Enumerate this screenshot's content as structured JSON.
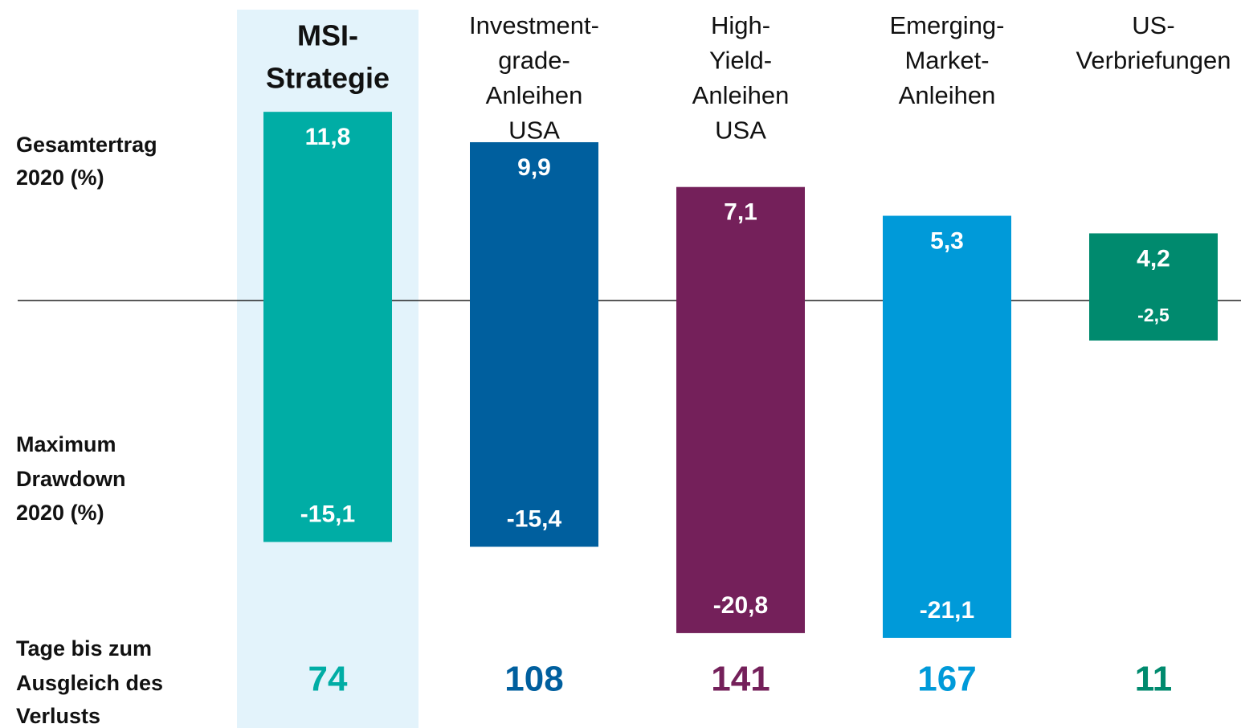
{
  "chart_data": {
    "type": "bar",
    "categories": [
      [
        "MSI-",
        "Strategie"
      ],
      [
        "Investment-",
        "grade-",
        "Anleihen",
        "USA"
      ],
      [
        "High-",
        "Yield-",
        "Anleihen",
        "USA"
      ],
      [
        "Emerging-",
        "Market-",
        "Anleihen"
      ],
      [
        "US-",
        "Verbriefungen"
      ]
    ],
    "colors": [
      "#00ada5",
      "#005f9e",
      "#74205a",
      "#009ad9",
      "#008a6e"
    ],
    "rows": [
      [
        "Gesamtertrag",
        "2020 (%)"
      ],
      [
        "Maximum",
        "Drawdown",
        "2020 (%)"
      ],
      [
        "Tage bis zum",
        "Ausgleich des",
        "Verlusts"
      ]
    ],
    "series": [
      {
        "values": [
          11.8,
          9.9,
          7.1,
          5.3,
          4.2
        ],
        "value_labels": [
          "11,8",
          "9,9",
          "7,1",
          "5,3",
          "4,2"
        ]
      },
      {
        "values": [
          -15.1,
          -15.4,
          -20.8,
          -21.1,
          -2.5
        ],
        "value_labels": [
          "-15,1",
          "-15,4",
          "-20,8",
          "-21,1",
          "-2,5"
        ]
      },
      {
        "values": [
          74,
          108,
          141,
          167,
          11
        ]
      }
    ]
  }
}
